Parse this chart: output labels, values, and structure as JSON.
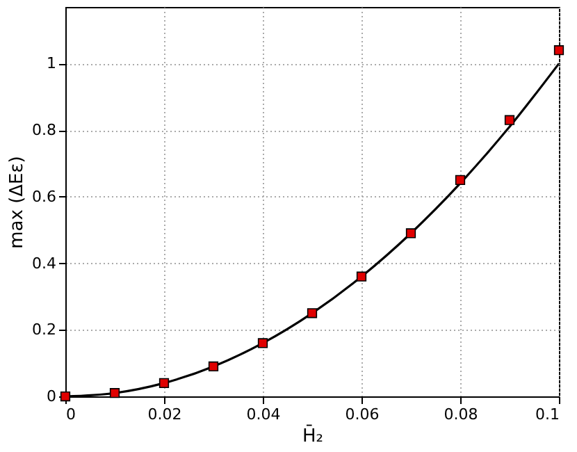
{
  "chart_data": {
    "type": "line",
    "xlabel": "H̄₂",
    "ylabel": "max (ΔEε)",
    "xlim": [
      0,
      0.1
    ],
    "xticks": [
      0,
      0.02,
      0.04,
      0.06,
      0.08,
      0.1
    ],
    "ylim": [
      0,
      1.17
    ],
    "yticks": [
      0,
      0.2,
      0.4,
      0.6,
      0.8,
      1
    ],
    "grid": true,
    "series": [
      {
        "type": "line",
        "color": "#000000",
        "marker": "none",
        "line_style": "solid",
        "x": [
          0,
          0.01,
          0.02,
          0.03,
          0.04,
          0.05,
          0.06,
          0.07,
          0.08,
          0.09,
          0.1
        ],
        "values": [
          0,
          0.01,
          0.04,
          0.09,
          0.16,
          0.25,
          0.36,
          0.49,
          0.64,
          0.81,
          1.0
        ]
      },
      {
        "type": "scatter",
        "color": "#e00000",
        "marker": "square",
        "x": [
          0,
          0.01,
          0.02,
          0.03,
          0.04,
          0.05,
          0.06,
          0.07,
          0.08,
          0.09,
          0.1
        ],
        "values": [
          0,
          0.01,
          0.04,
          0.09,
          0.16,
          0.25,
          0.36,
          0.49,
          0.65,
          0.83,
          1.04
        ]
      }
    ]
  }
}
